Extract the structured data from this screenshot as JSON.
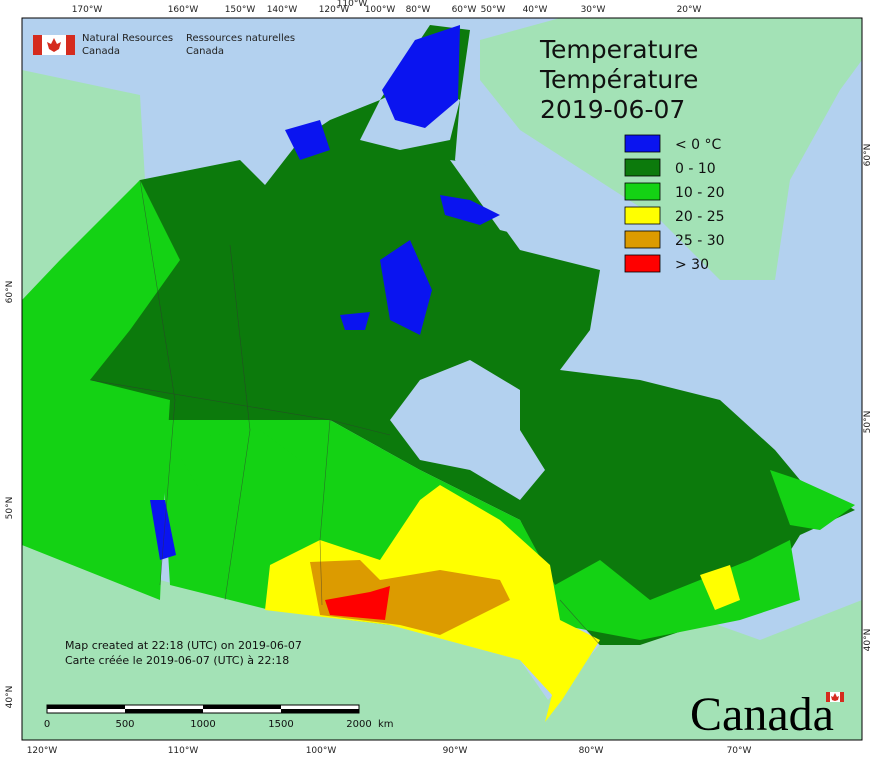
{
  "header": {
    "org_en_line1": "Natural Resources",
    "org_en_line2": "Canada",
    "org_fr_line1": "Ressources naturelles",
    "org_fr_line2": "Canada"
  },
  "title": {
    "line1": "Temperature",
    "line2": "Température",
    "date": "2019-06-07"
  },
  "legend": {
    "items": [
      {
        "label": "< 0 °C",
        "color": "#0a14f0"
      },
      {
        "label": "0 - 10",
        "color": "#0c7a0c"
      },
      {
        "label": "10 - 20",
        "color": "#14d214"
      },
      {
        "label": "20 - 25",
        "color": "#ffff00"
      },
      {
        "label": "25 - 30",
        "color": "#dc9b00"
      },
      {
        "label": "> 30",
        "color": "#ff0000"
      }
    ]
  },
  "graticule": {
    "top": [
      "170°W",
      "160°W",
      "150°W",
      "140°W",
      "120°W",
      "110°W",
      "100°W",
      "80°W",
      "60°W",
      "50°W",
      "40°W",
      "30°W",
      "20°W"
    ],
    "bottom": [
      "120°W",
      "110°W",
      "100°W",
      "90°W",
      "80°W",
      "70°W"
    ],
    "left": [
      "60°N",
      "50°N",
      "40°N"
    ],
    "right": [
      "60°N",
      "50°N",
      "40°N"
    ]
  },
  "notes": [
    "Map created at 22:18 (UTC) on 2019-06-07",
    "Carte créée le 2019-06-07 (UTC) à 22:18"
  ],
  "scale": {
    "labels": [
      "0",
      "500",
      "1000",
      "1500",
      "2000"
    ],
    "unit": "km"
  },
  "wordmark": "Canada"
}
